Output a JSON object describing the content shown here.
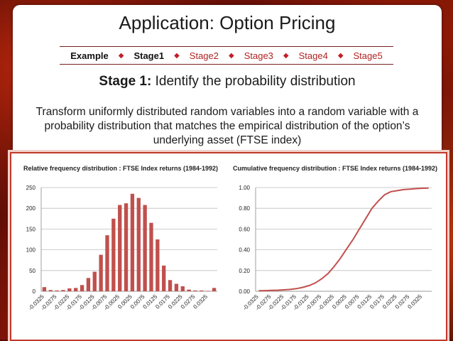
{
  "slide": {
    "title": "Application: Option Pricing",
    "nav": [
      {
        "label": "Example",
        "active": true
      },
      {
        "label": "Stage1",
        "active": true
      },
      {
        "label": "Stage2",
        "active": false
      },
      {
        "label": "Stage3",
        "active": false
      },
      {
        "label": "Stage4",
        "active": false
      },
      {
        "label": "Stage5",
        "active": false
      }
    ],
    "subtitle_bold": "Stage 1:",
    "subtitle_rest": "Identify the probability distribution",
    "body": "Transform uniformly distributed random variables into a random variable with a probability distribution that matches the empirical distribution of the option’s underlying asset (FTSE index)",
    "colors": {
      "accent": "#c0392b",
      "nav_inactive": "#b22222",
      "bar": "#c0504d"
    }
  },
  "chart_data": [
    {
      "type": "bar",
      "title": "Relative frequency distribution : FTSE Index returns (1984-1992)",
      "xlabel": "",
      "ylabel": "",
      "ylim": [
        0,
        250
      ],
      "yticks": [
        0,
        50,
        100,
        150,
        200,
        250
      ],
      "categories": [
        "-0.0325",
        "-0.03",
        "-0.0275",
        "-0.025",
        "-0.0225",
        "-0.02",
        "-0.0175",
        "-0.015",
        "-0.0125",
        "-0.01",
        "-0.0075",
        "-0.005",
        "-0.0025",
        "0",
        "0.0025",
        "0.005",
        "0.0075",
        "0.01",
        "0.0125",
        "0.015",
        "0.0175",
        "0.02",
        "0.0225",
        "0.025",
        "0.0275",
        "0.03",
        "0.0325",
        "0.035"
      ],
      "tick_labels": [
        "-0.0325",
        "-0.0275",
        "-0.0225",
        "-0.0175",
        "-0.0125",
        "-0.0075",
        "-0.0025",
        "0.0025",
        "0.0075",
        "0.0125",
        "0.0175",
        "0.0225",
        "0.0275",
        "0.0325"
      ],
      "values": [
        10,
        3,
        2,
        3,
        7,
        8,
        15,
        32,
        47,
        88,
        135,
        175,
        208,
        212,
        235,
        225,
        208,
        165,
        125,
        62,
        27,
        18,
        12,
        4,
        2,
        2,
        1,
        8
      ],
      "grid": true,
      "color": "#c0504d"
    },
    {
      "type": "line",
      "title": "Cumulative frequency distribution : FTSE Index returns (1984-1992)",
      "xlabel": "",
      "ylabel": "",
      "ylim": [
        0,
        1
      ],
      "yticks": [
        "0.00",
        "0.20",
        "0.40",
        "0.60",
        "0.80",
        "1.00"
      ],
      "tick_labels": [
        "-0.0325",
        "-0.0275",
        "-0.0225",
        "-0.0175",
        "-0.0125",
        "-0.0075",
        "-0.0025",
        "0.0025",
        "0.0075",
        "0.0125",
        "0.0175",
        "0.0225",
        "0.0275",
        "0.0325"
      ],
      "x": [
        -0.0325,
        -0.03,
        -0.0275,
        -0.025,
        -0.0225,
        -0.02,
        -0.0175,
        -0.015,
        -0.0125,
        -0.01,
        -0.0075,
        -0.005,
        -0.0025,
        0,
        0.0025,
        0.005,
        0.0075,
        0.01,
        0.0125,
        0.015,
        0.0175,
        0.02,
        0.0225,
        0.025,
        0.0275,
        0.03,
        0.0325,
        0.035
      ],
      "y": [
        0.005,
        0.006,
        0.008,
        0.01,
        0.014,
        0.018,
        0.025,
        0.038,
        0.055,
        0.08,
        0.12,
        0.17,
        0.24,
        0.32,
        0.41,
        0.5,
        0.6,
        0.7,
        0.8,
        0.87,
        0.93,
        0.96,
        0.97,
        0.98,
        0.985,
        0.99,
        0.993,
        0.995
      ],
      "grid": true,
      "color": "#c0504d"
    }
  ]
}
